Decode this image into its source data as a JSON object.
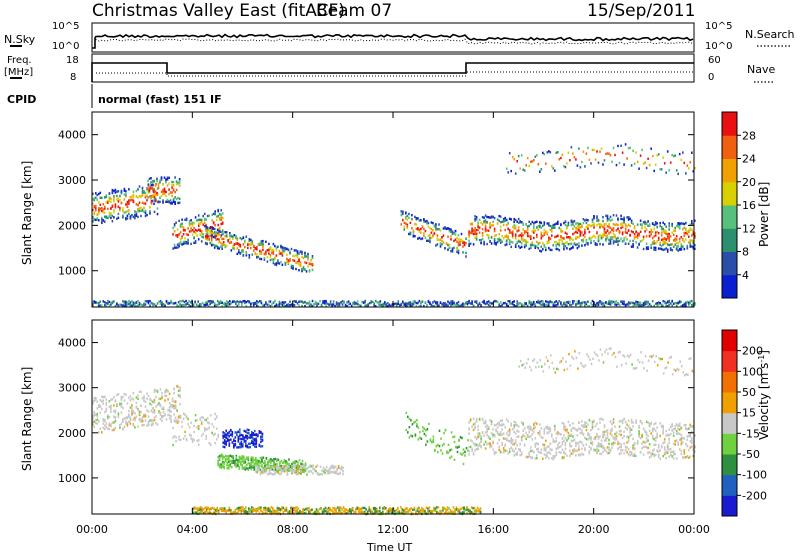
{
  "header": {
    "title": "Christmas Valley East (fitACF)",
    "beam": "Beam 07",
    "date": "15/Sep/2011"
  },
  "top_panels": {
    "nsky_label": "N.Sky",
    "nsky_ticks": [
      "10^5",
      "10^0"
    ],
    "nsearch_label": "N.Search",
    "nsearch_ticks": [
      "10^5",
      "10^0"
    ],
    "freq_label": "Freq.",
    "freq_unit": "[MHz]",
    "freq_ticks": [
      "18",
      "8"
    ],
    "nave_label": "Nave",
    "nave_ticks": [
      "60",
      "0"
    ],
    "cpid_label": "CPID",
    "cpid_text": "normal (fast) 151 IF"
  },
  "chart_data": [
    {
      "type": "heatmap",
      "title": "",
      "xlabel": "",
      "ylabel": "Slant Range [km]",
      "x_ticks": [
        "00:00",
        "04:00",
        "08:00",
        "12:00",
        "16:00",
        "20:00",
        "00:00"
      ],
      "y_ticks": [
        1000,
        2000,
        3000,
        4000
      ],
      "ylim": [
        200,
        4500
      ],
      "colorbar": {
        "label": "Power [dB]",
        "ticks": [
          "4",
          "8",
          "12",
          "16",
          "20",
          "24",
          "28"
        ],
        "colors": [
          "#0a1fd0",
          "#2a4fa8",
          "#2e8f6e",
          "#58c07a",
          "#d8d000",
          "#f0a000",
          "#f06010",
          "#e81010"
        ]
      }
    },
    {
      "type": "heatmap",
      "title": "",
      "xlabel": "Time UT",
      "ylabel": "Slant Range [km]",
      "x_ticks": [
        "00:00",
        "04:00",
        "08:00",
        "12:00",
        "16:00",
        "20:00",
        "00:00"
      ],
      "y_ticks": [
        1000,
        2000,
        3000,
        4000
      ],
      "ylim": [
        200,
        4500
      ],
      "colorbar": {
        "label": "Velocity [m s^-1]",
        "ticks": [
          "200",
          "100",
          "50",
          "15",
          "-15",
          "-50",
          "-100",
          "-200"
        ],
        "colors": [
          "#1a1ad0",
          "#2060c0",
          "#2f8f40",
          "#6fd040",
          "#c8c8c8",
          "#f0a000",
          "#f07000",
          "#f03020",
          "#e00000"
        ]
      }
    }
  ]
}
